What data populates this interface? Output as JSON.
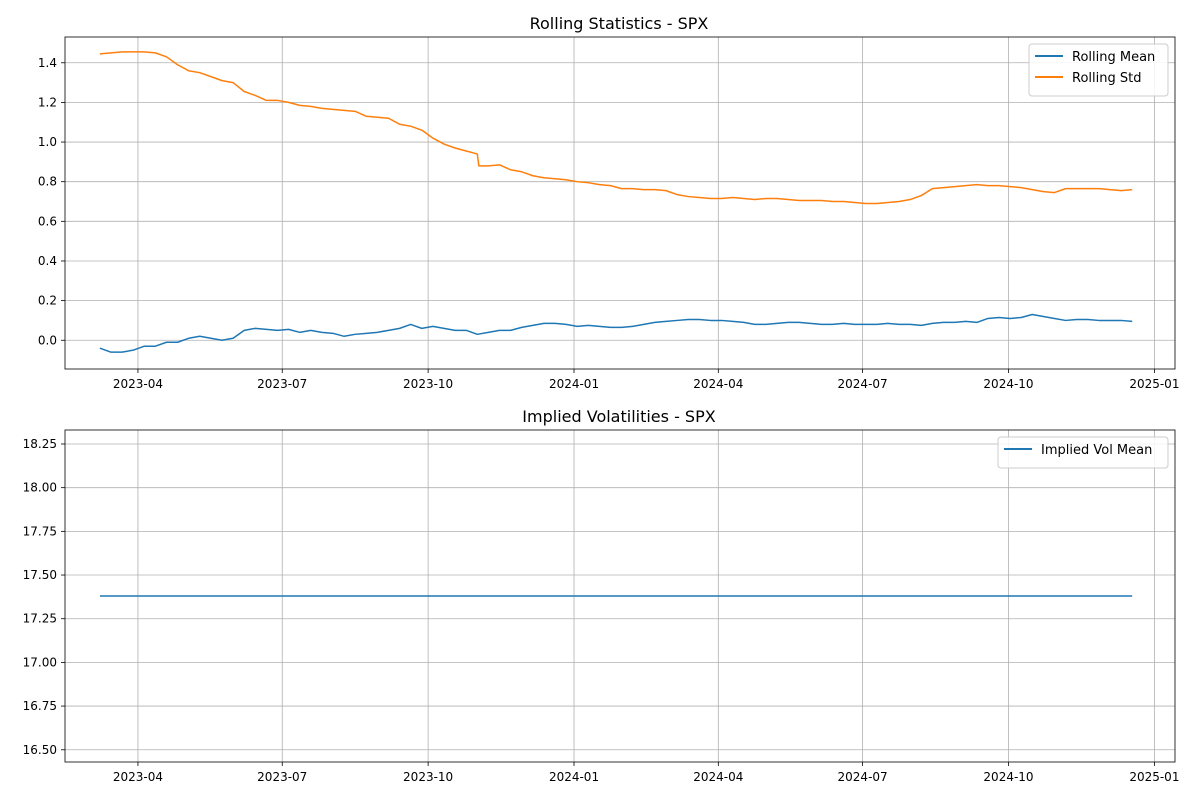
{
  "colors": {
    "rolling_mean": "#1f77b4",
    "rolling_std": "#ff7f0e",
    "implied_vol": "#1f77b4"
  },
  "chart_data": [
    {
      "type": "line",
      "title": "Rolling Statistics - SPX",
      "xlabel": "",
      "ylabel": "",
      "grid": true,
      "legend_placement": "top-right",
      "xlim": [
        "2023-02-14",
        "2025-01-14"
      ],
      "x_ticks": [
        "2023-04",
        "2023-07",
        "2023-10",
        "2024-01",
        "2024-04",
        "2024-07",
        "2024-10",
        "2025-01"
      ],
      "ylim": [
        -0.145,
        1.53
      ],
      "y_ticks": [
        "0.0",
        "0.2",
        "0.4",
        "0.6",
        "0.8",
        "1.0",
        "1.2",
        "1.4"
      ],
      "series": [
        {
          "name": "Rolling Mean",
          "color": "#1f77b4",
          "points": [
            [
              "2023-03-08",
              -0.04
            ],
            [
              "2023-03-15",
              -0.06
            ],
            [
              "2023-03-22",
              -0.06
            ],
            [
              "2023-03-29",
              -0.05
            ],
            [
              "2023-04-05",
              -0.03
            ],
            [
              "2023-04-12",
              -0.03
            ],
            [
              "2023-04-19",
              -0.01
            ],
            [
              "2023-04-26",
              -0.01
            ],
            [
              "2023-05-03",
              0.01
            ],
            [
              "2023-05-10",
              0.02
            ],
            [
              "2023-05-17",
              0.01
            ],
            [
              "2023-05-24",
              0.0
            ],
            [
              "2023-05-31",
              0.01
            ],
            [
              "2023-06-07",
              0.05
            ],
            [
              "2023-06-14",
              0.06
            ],
            [
              "2023-06-21",
              0.055
            ],
            [
              "2023-06-28",
              0.05
            ],
            [
              "2023-07-05",
              0.055
            ],
            [
              "2023-07-12",
              0.04
            ],
            [
              "2023-07-19",
              0.05
            ],
            [
              "2023-07-26",
              0.04
            ],
            [
              "2023-08-02",
              0.035
            ],
            [
              "2023-08-09",
              0.02
            ],
            [
              "2023-08-16",
              0.03
            ],
            [
              "2023-08-23",
              0.035
            ],
            [
              "2023-08-30",
              0.04
            ],
            [
              "2023-09-06",
              0.05
            ],
            [
              "2023-09-13",
              0.06
            ],
            [
              "2023-09-20",
              0.08
            ],
            [
              "2023-09-27",
              0.06
            ],
            [
              "2023-10-04",
              0.07
            ],
            [
              "2023-10-11",
              0.06
            ],
            [
              "2023-10-18",
              0.05
            ],
            [
              "2023-10-25",
              0.05
            ],
            [
              "2023-11-01",
              0.03
            ],
            [
              "2023-11-08",
              0.04
            ],
            [
              "2023-11-15",
              0.05
            ],
            [
              "2023-11-22",
              0.05
            ],
            [
              "2023-11-29",
              0.065
            ],
            [
              "2023-12-06",
              0.075
            ],
            [
              "2023-12-13",
              0.085
            ],
            [
              "2023-12-20",
              0.085
            ],
            [
              "2023-12-27",
              0.08
            ],
            [
              "2024-01-03",
              0.07
            ],
            [
              "2024-01-10",
              0.075
            ],
            [
              "2024-01-17",
              0.07
            ],
            [
              "2024-01-24",
              0.065
            ],
            [
              "2024-01-31",
              0.065
            ],
            [
              "2024-02-07",
              0.07
            ],
            [
              "2024-02-14",
              0.08
            ],
            [
              "2024-02-21",
              0.09
            ],
            [
              "2024-02-28",
              0.095
            ],
            [
              "2024-03-06",
              0.1
            ],
            [
              "2024-03-13",
              0.105
            ],
            [
              "2024-03-20",
              0.105
            ],
            [
              "2024-03-27",
              0.1
            ],
            [
              "2024-04-03",
              0.1
            ],
            [
              "2024-04-10",
              0.095
            ],
            [
              "2024-04-17",
              0.09
            ],
            [
              "2024-04-24",
              0.08
            ],
            [
              "2024-05-01",
              0.08
            ],
            [
              "2024-05-08",
              0.085
            ],
            [
              "2024-05-15",
              0.09
            ],
            [
              "2024-05-22",
              0.09
            ],
            [
              "2024-05-29",
              0.085
            ],
            [
              "2024-06-05",
              0.08
            ],
            [
              "2024-06-12",
              0.08
            ],
            [
              "2024-06-19",
              0.085
            ],
            [
              "2024-06-26",
              0.08
            ],
            [
              "2024-07-03",
              0.08
            ],
            [
              "2024-07-10",
              0.08
            ],
            [
              "2024-07-17",
              0.085
            ],
            [
              "2024-07-24",
              0.08
            ],
            [
              "2024-07-31",
              0.08
            ],
            [
              "2024-08-07",
              0.075
            ],
            [
              "2024-08-14",
              0.085
            ],
            [
              "2024-08-21",
              0.09
            ],
            [
              "2024-08-28",
              0.09
            ],
            [
              "2024-09-04",
              0.095
            ],
            [
              "2024-09-11",
              0.09
            ],
            [
              "2024-09-18",
              0.11
            ],
            [
              "2024-09-25",
              0.115
            ],
            [
              "2024-10-02",
              0.11
            ],
            [
              "2024-10-09",
              0.115
            ],
            [
              "2024-10-16",
              0.13
            ],
            [
              "2024-10-23",
              0.12
            ],
            [
              "2024-10-30",
              0.11
            ],
            [
              "2024-11-06",
              0.1
            ],
            [
              "2024-11-13",
              0.105
            ],
            [
              "2024-11-20",
              0.105
            ],
            [
              "2024-11-27",
              0.1
            ],
            [
              "2024-12-04",
              0.1
            ],
            [
              "2024-12-11",
              0.1
            ],
            [
              "2024-12-18",
              0.095
            ]
          ]
        },
        {
          "name": "Rolling Std",
          "color": "#ff7f0e",
          "points": [
            [
              "2023-03-08",
              1.445
            ],
            [
              "2023-03-15",
              1.45
            ],
            [
              "2023-03-22",
              1.455
            ],
            [
              "2023-03-29",
              1.455
            ],
            [
              "2023-04-05",
              1.455
            ],
            [
              "2023-04-12",
              1.45
            ],
            [
              "2023-04-19",
              1.43
            ],
            [
              "2023-04-26",
              1.39
            ],
            [
              "2023-05-03",
              1.36
            ],
            [
              "2023-05-10",
              1.35
            ],
            [
              "2023-05-17",
              1.33
            ],
            [
              "2023-05-24",
              1.31
            ],
            [
              "2023-05-31",
              1.3
            ],
            [
              "2023-06-07",
              1.255
            ],
            [
              "2023-06-14",
              1.235
            ],
            [
              "2023-06-21",
              1.21
            ],
            [
              "2023-06-28",
              1.21
            ],
            [
              "2023-07-05",
              1.2
            ],
            [
              "2023-07-12",
              1.185
            ],
            [
              "2023-07-19",
              1.18
            ],
            [
              "2023-07-26",
              1.17
            ],
            [
              "2023-08-02",
              1.165
            ],
            [
              "2023-08-09",
              1.16
            ],
            [
              "2023-08-16",
              1.155
            ],
            [
              "2023-08-23",
              1.13
            ],
            [
              "2023-08-30",
              1.125
            ],
            [
              "2023-09-06",
              1.12
            ],
            [
              "2023-09-13",
              1.09
            ],
            [
              "2023-09-20",
              1.08
            ],
            [
              "2023-09-27",
              1.06
            ],
            [
              "2023-10-04",
              1.02
            ],
            [
              "2023-10-11",
              0.99
            ],
            [
              "2023-10-18",
              0.97
            ],
            [
              "2023-10-25",
              0.955
            ],
            [
              "2023-11-01",
              0.94
            ],
            [
              "2023-11-02",
              0.88
            ],
            [
              "2023-11-08",
              0.88
            ],
            [
              "2023-11-15",
              0.885
            ],
            [
              "2023-11-22",
              0.86
            ],
            [
              "2023-11-29",
              0.85
            ],
            [
              "2023-12-06",
              0.83
            ],
            [
              "2023-12-13",
              0.82
            ],
            [
              "2023-12-20",
              0.815
            ],
            [
              "2023-12-27",
              0.81
            ],
            [
              "2024-01-03",
              0.8
            ],
            [
              "2024-01-10",
              0.795
            ],
            [
              "2024-01-17",
              0.785
            ],
            [
              "2024-01-24",
              0.78
            ],
            [
              "2024-01-31",
              0.765
            ],
            [
              "2024-02-07",
              0.765
            ],
            [
              "2024-02-14",
              0.76
            ],
            [
              "2024-02-21",
              0.76
            ],
            [
              "2024-02-28",
              0.755
            ],
            [
              "2024-03-06",
              0.735
            ],
            [
              "2024-03-13",
              0.725
            ],
            [
              "2024-03-20",
              0.72
            ],
            [
              "2024-03-27",
              0.715
            ],
            [
              "2024-04-03",
              0.715
            ],
            [
              "2024-04-10",
              0.72
            ],
            [
              "2024-04-17",
              0.715
            ],
            [
              "2024-04-24",
              0.71
            ],
            [
              "2024-05-01",
              0.715
            ],
            [
              "2024-05-08",
              0.715
            ],
            [
              "2024-05-15",
              0.71
            ],
            [
              "2024-05-22",
              0.705
            ],
            [
              "2024-05-29",
              0.705
            ],
            [
              "2024-06-05",
              0.705
            ],
            [
              "2024-06-12",
              0.7
            ],
            [
              "2024-06-19",
              0.7
            ],
            [
              "2024-06-26",
              0.695
            ],
            [
              "2024-07-03",
              0.69
            ],
            [
              "2024-07-10",
              0.69
            ],
            [
              "2024-07-17",
              0.695
            ],
            [
              "2024-07-24",
              0.7
            ],
            [
              "2024-07-31",
              0.71
            ],
            [
              "2024-08-07",
              0.73
            ],
            [
              "2024-08-14",
              0.765
            ],
            [
              "2024-08-21",
              0.77
            ],
            [
              "2024-08-28",
              0.775
            ],
            [
              "2024-09-04",
              0.78
            ],
            [
              "2024-09-11",
              0.785
            ],
            [
              "2024-09-18",
              0.78
            ],
            [
              "2024-09-25",
              0.78
            ],
            [
              "2024-10-02",
              0.775
            ],
            [
              "2024-10-09",
              0.77
            ],
            [
              "2024-10-16",
              0.76
            ],
            [
              "2024-10-23",
              0.75
            ],
            [
              "2024-10-30",
              0.745
            ],
            [
              "2024-11-06",
              0.765
            ],
            [
              "2024-11-13",
              0.765
            ],
            [
              "2024-11-20",
              0.765
            ],
            [
              "2024-11-27",
              0.765
            ],
            [
              "2024-12-04",
              0.76
            ],
            [
              "2024-12-11",
              0.755
            ],
            [
              "2024-12-18",
              0.76
            ]
          ]
        }
      ]
    },
    {
      "type": "line",
      "title": "Implied Volatilities - SPX",
      "xlabel": "",
      "ylabel": "",
      "grid": true,
      "legend_placement": "top-right",
      "xlim": [
        "2023-02-14",
        "2025-01-14"
      ],
      "x_ticks": [
        "2023-04",
        "2023-07",
        "2023-10",
        "2024-01",
        "2024-04",
        "2024-07",
        "2024-10",
        "2025-01"
      ],
      "ylim": [
        16.43,
        18.33
      ],
      "y_ticks": [
        "16.50",
        "16.75",
        "17.00",
        "17.25",
        "17.50",
        "17.75",
        "18.00",
        "18.25"
      ],
      "series": [
        {
          "name": "Implied Vol Mean",
          "color": "#1f77b4",
          "points": [
            [
              "2023-03-08",
              17.38
            ],
            [
              "2024-12-18",
              17.38
            ]
          ]
        }
      ]
    }
  ]
}
